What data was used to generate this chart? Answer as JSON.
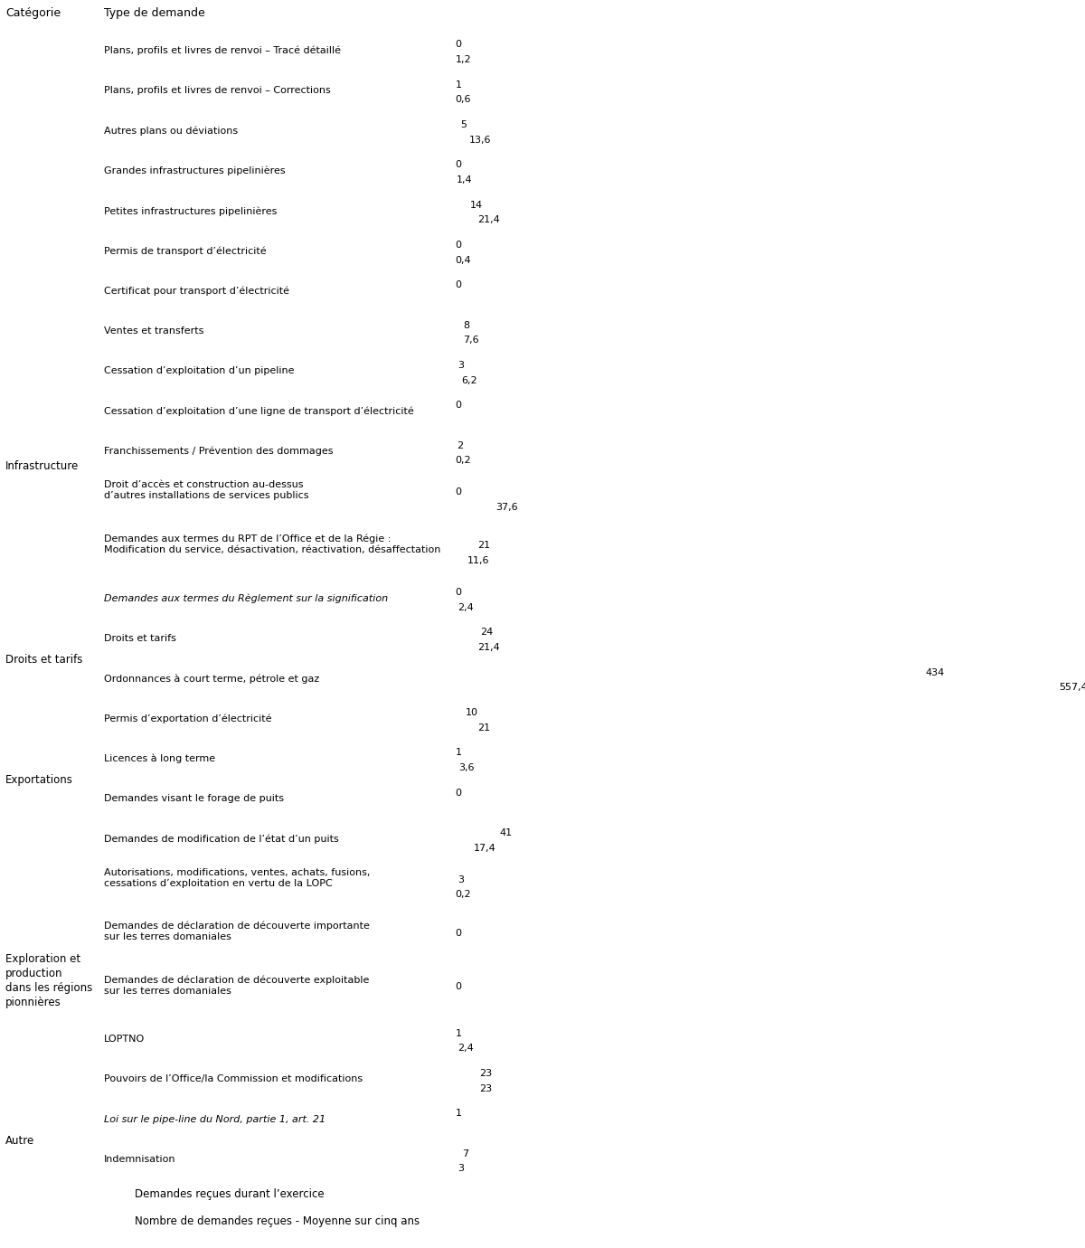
{
  "header_category": "Catégorie",
  "header_type": "Type de demande",
  "blue_color": "#7EC8E3",
  "gray_color": "#C8C8C8",
  "line_color": "#BBBBBB",
  "categories": [
    {
      "cat_label": "",
      "type_label": "Plans, profils et livres de renvoi – Tracé détaillé",
      "blue_val": 0,
      "gray_val": 1.2,
      "n_lines": 1
    },
    {
      "cat_label": "",
      "type_label": "Plans, profils et livres de renvoi – Corrections",
      "blue_val": 1,
      "gray_val": 0.6,
      "n_lines": 1
    },
    {
      "cat_label": "",
      "type_label": "Autres plans ou déviations",
      "blue_val": 5,
      "gray_val": 13.6,
      "n_lines": 1
    },
    {
      "cat_label": "",
      "type_label": "Grandes infrastructures pipelinières",
      "blue_val": 0,
      "gray_val": 1.4,
      "n_lines": 1
    },
    {
      "cat_label": "",
      "type_label": "Petites infrastructures pipelinières",
      "blue_val": 14,
      "gray_val": 21.4,
      "n_lines": 1
    },
    {
      "cat_label": "",
      "type_label": "Permis de transport d’électricité",
      "blue_val": 0,
      "gray_val": 0.4,
      "n_lines": 1
    },
    {
      "cat_label": "",
      "type_label": "Certificat pour transport d’électricité",
      "blue_val": 0,
      "gray_val": 0,
      "n_lines": 1
    },
    {
      "cat_label": "Infrastructure",
      "type_label": "Ventes et transferts",
      "blue_val": 8,
      "gray_val": 7.6,
      "n_lines": 1
    },
    {
      "cat_label": "",
      "type_label": "Cessation d’exploitation d’un pipeline",
      "blue_val": 3,
      "gray_val": 6.2,
      "n_lines": 1
    },
    {
      "cat_label": "",
      "type_label": "Cessation d’exploitation d’une ligne de transport d’électricité",
      "blue_val": 0,
      "gray_val": 0,
      "n_lines": 1
    },
    {
      "cat_label": "",
      "type_label": "Franchissements / Prévention des dommages",
      "blue_val": 2,
      "gray_val": 0.2,
      "n_lines": 1
    },
    {
      "cat_label": "",
      "type_label": "Droit d’accès et construction au-dessus\nd’autres installations de services publics",
      "blue_val": 0,
      "gray_val": 37.6,
      "n_lines": 2
    },
    {
      "cat_label": "",
      "type_label": "Demandes aux termes du RPT de l’Office et de la Régie :\nModification du service, désactivation, réactivation, désaffectation",
      "blue_val": 21,
      "gray_val": 11.6,
      "n_lines": 2
    },
    {
      "cat_label": "",
      "type_label": "Demandes aux termes du Règlement sur la signification",
      "blue_val": 0,
      "gray_val": 2.4,
      "n_lines": 1,
      "italic": true
    },
    {
      "cat_label": "Droits et tarifs",
      "type_label": "Droits et tarifs",
      "blue_val": 24,
      "gray_val": 21.4,
      "n_lines": 1
    },
    {
      "cat_label": "",
      "type_label": "Ordonnances à court terme, pétrole et gaz",
      "blue_val": 434,
      "gray_val": 557.4,
      "n_lines": 1
    },
    {
      "cat_label": "Exportations",
      "type_label": "Permis d’exportation d’électricité",
      "blue_val": 10,
      "gray_val": 21,
      "n_lines": 1
    },
    {
      "cat_label": "",
      "type_label": "Licences à long terme",
      "blue_val": 1,
      "gray_val": 3.6,
      "n_lines": 1
    },
    {
      "cat_label": "",
      "type_label": "Demandes visant le forage de puits",
      "blue_val": 0,
      "gray_val": 0,
      "n_lines": 1
    },
    {
      "cat_label": "",
      "type_label": "Demandes de modification de l’état d’un puits",
      "blue_val": 41,
      "gray_val": 17.4,
      "n_lines": 1
    },
    {
      "cat_label": "Exploration et\nproduction\ndans les régions\npionnières",
      "type_label": "Autorisations, modifications, ventes, achats, fusions,\ncessations d’exploitation en vertu de la LOPC",
      "blue_val": 3,
      "gray_val": 0.2,
      "n_lines": 2
    },
    {
      "cat_label": "",
      "type_label": "Demandes de déclaration de découverte importante\nsur les terres domaniales",
      "blue_val": 0,
      "gray_val": 0,
      "n_lines": 2
    },
    {
      "cat_label": "",
      "type_label": "Demandes de déclaration de découverte exploitable\nsur les terres domaniales",
      "blue_val": 0,
      "gray_val": 0,
      "n_lines": 2
    },
    {
      "cat_label": "",
      "type_label": "LOPTNO",
      "blue_val": 1,
      "gray_val": 2.4,
      "n_lines": 1
    },
    {
      "cat_label": "",
      "type_label": "Pouvoirs de l’Office/la Commission et modifications",
      "blue_val": 23,
      "gray_val": 23,
      "n_lines": 1
    },
    {
      "cat_label": "Autre",
      "type_label": "Loi sur le pipe-line du Nord, partie 1, art. 21",
      "blue_val": 1,
      "gray_val": 0,
      "n_lines": 1,
      "italic": true
    },
    {
      "cat_label": "",
      "type_label": "Indemnisation",
      "blue_val": 7,
      "gray_val": 3,
      "n_lines": 1
    }
  ],
  "legend_blue": "Demandes reçues durant l’exercice",
  "legend_gray": "Nombre de demandes reçues - Moyenne sur cinq ans",
  "scale_max": 570
}
